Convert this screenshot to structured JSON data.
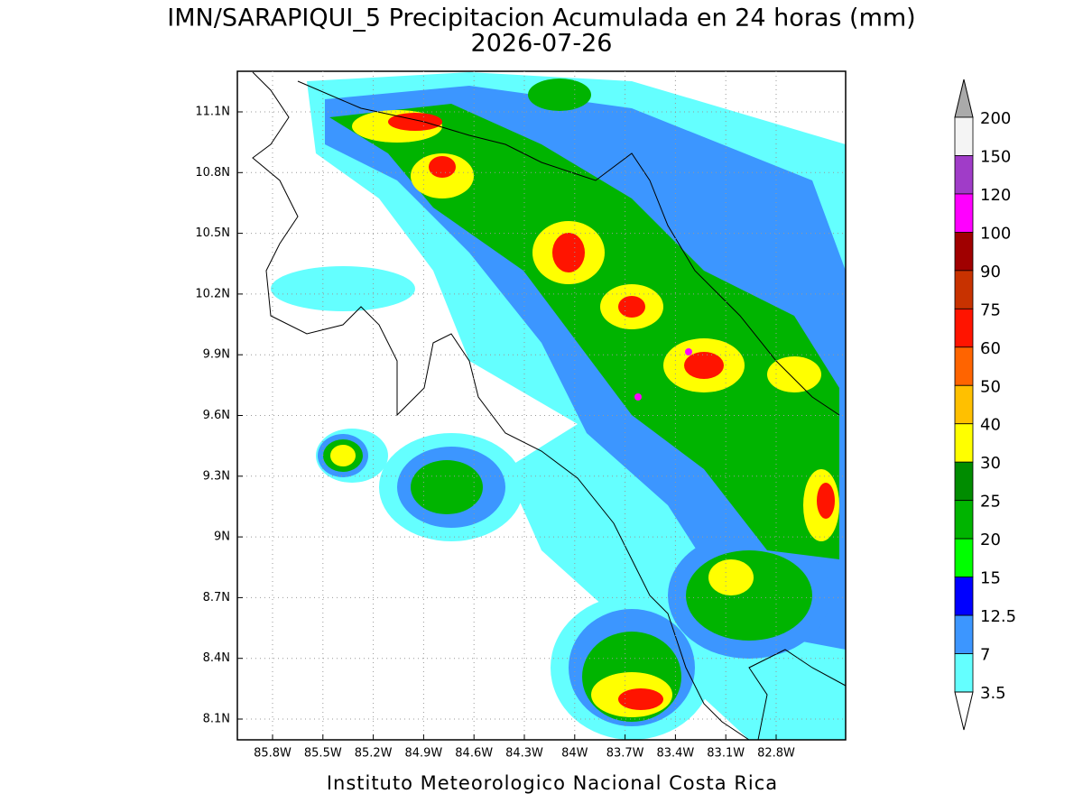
{
  "title": "IMN/SARAPIQUI_5 Precipitacion Acumulada en 24 horas (mm)",
  "date": "2026-07-26",
  "lat_ticks": [
    "11.1N",
    "10.8N",
    "10.5N",
    "10.2N",
    "9.9N",
    "9.6N",
    "9.3N",
    "9N",
    "8.7N",
    "8.4N",
    "8.1N"
  ],
  "lon_ticks": [
    "85.8W",
    "85.5W",
    "85.2W",
    "84.9W",
    "84.6W",
    "84.3W",
    "84W",
    "83.7W",
    "83.4W",
    "83.1W",
    "82.8W"
  ],
  "colorbar": {
    "labels": [
      "200",
      "150",
      "120",
      "100",
      "90",
      "75",
      "60",
      "50",
      "40",
      "30",
      "25",
      "20",
      "15",
      "12.5",
      "7",
      "3.5"
    ],
    "colors": [
      "#f4f4f4",
      "#a03cc8",
      "#ff00ff",
      "#a00000",
      "#c83200",
      "#ff1400",
      "#ff6400",
      "#ffc000",
      "#ffff00",
      "#008c00",
      "#00b400",
      "#00ff00",
      "#0000ff",
      "#3c96ff",
      "#64ffff"
    ],
    "over_color": "#aaaaaa",
    "under_color": "#ffffff"
  },
  "footer": "Instituto Meteorologico Nacional Costa Rica"
}
